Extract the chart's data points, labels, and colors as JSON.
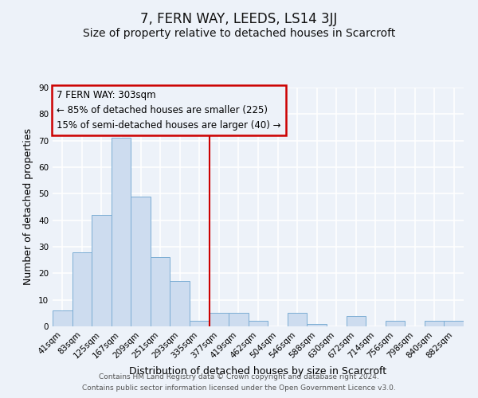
{
  "title": "7, FERN WAY, LEEDS, LS14 3JJ",
  "subtitle": "Size of property relative to detached houses in Scarcroft",
  "xlabel": "Distribution of detached houses by size in Scarcroft",
  "ylabel": "Number of detached properties",
  "categories": [
    "41sqm",
    "83sqm",
    "125sqm",
    "167sqm",
    "209sqm",
    "251sqm",
    "293sqm",
    "335sqm",
    "377sqm",
    "419sqm",
    "462sqm",
    "504sqm",
    "546sqm",
    "588sqm",
    "630sqm",
    "672sqm",
    "714sqm",
    "756sqm",
    "798sqm",
    "840sqm",
    "882sqm"
  ],
  "values": [
    6,
    28,
    42,
    71,
    49,
    26,
    17,
    2,
    5,
    5,
    2,
    0,
    5,
    1,
    0,
    4,
    0,
    2,
    0,
    2,
    2
  ],
  "bar_color": "#cddcef",
  "bar_edge_color": "#7badd4",
  "vline_x": 7.5,
  "vline_color": "#cc0000",
  "annotation_box_color": "#cc0000",
  "annotation_line1": "7 FERN WAY: 303sqm",
  "annotation_line2": "← 85% of detached houses are smaller (225)",
  "annotation_line3": "15% of semi-detached houses are larger (40) →",
  "ylim": [
    0,
    90
  ],
  "yticks": [
    0,
    10,
    20,
    30,
    40,
    50,
    60,
    70,
    80,
    90
  ],
  "footnote1": "Contains HM Land Registry data © Crown copyright and database right 2024.",
  "footnote2": "Contains public sector information licensed under the Open Government Licence v3.0.",
  "bg_color": "#edf2f9",
  "grid_color": "#ffffff",
  "title_fontsize": 12,
  "subtitle_fontsize": 10,
  "axis_label_fontsize": 9,
  "tick_fontsize": 7.5,
  "annotation_fontsize": 8.5,
  "footnote_fontsize": 6.5
}
